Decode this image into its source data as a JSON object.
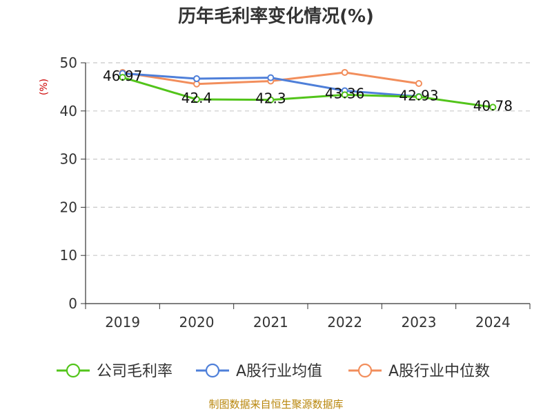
{
  "chart_data": {
    "type": "line",
    "title": "历年毛利率变化情况(%)",
    "ylabel": "(%)",
    "categories": [
      "2019",
      "2020",
      "2021",
      "2022",
      "2023",
      "2024"
    ],
    "ylim": [
      0,
      50
    ],
    "yticks": [
      0,
      10,
      20,
      30,
      40,
      50
    ],
    "grid": true,
    "legend_position": "bottom",
    "series": [
      {
        "name": "公司毛利率",
        "color": "#52c41a",
        "values": [
          46.97,
          42.4,
          42.3,
          43.36,
          42.93,
          40.78
        ],
        "labels": [
          "46.97",
          "42.4",
          "42.3",
          "43.36",
          "42.93",
          "40.78"
        ]
      },
      {
        "name": "A股行业均值",
        "color": "#4e7fd9",
        "values": [
          47.8,
          46.7,
          46.9,
          44.2,
          43.0,
          null
        ]
      },
      {
        "name": "A股行业中位数",
        "color": "#f28e5c",
        "values": [
          48.0,
          45.6,
          46.2,
          48.0,
          45.7,
          null
        ]
      }
    ],
    "source": "制图数据来自恒生聚源数据库"
  }
}
